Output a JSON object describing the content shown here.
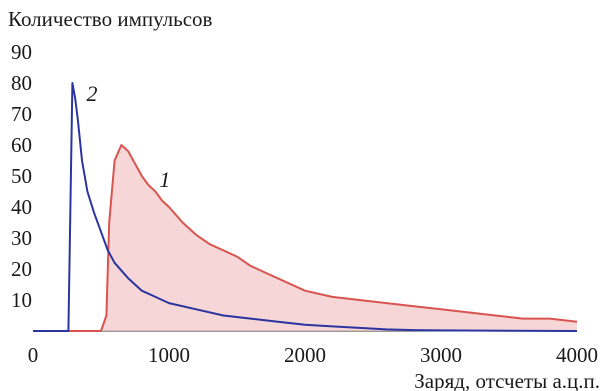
{
  "chart_data": {
    "type": "line",
    "ylabel": "Количество импульсов",
    "xlabel": "Заряд, отсчеты а.ц.п.",
    "xlim": [
      0,
      4000
    ],
    "ylim": [
      0,
      90
    ],
    "x_ticks": [
      0,
      1000,
      2000,
      3000,
      4000
    ],
    "y_ticks": [
      10,
      20,
      30,
      40,
      50,
      60,
      70,
      80,
      90
    ],
    "grid": false,
    "series": [
      {
        "name": "1",
        "color": "#d9534f",
        "fill": "#f2c4c4",
        "x": [
          0,
          500,
          540,
          560,
          600,
          650,
          700,
          750,
          800,
          850,
          900,
          950,
          1000,
          1100,
          1200,
          1300,
          1400,
          1500,
          1600,
          1700,
          1800,
          1900,
          2000,
          2200,
          2400,
          2600,
          2800,
          3000,
          3200,
          3400,
          3600,
          3800,
          4000
        ],
        "y": [
          0,
          0,
          5,
          35,
          55,
          60,
          58,
          54,
          50,
          47,
          45,
          42,
          40,
          35,
          31,
          28,
          26,
          24,
          21,
          19,
          17,
          15,
          13,
          11,
          10,
          9,
          8,
          7,
          6,
          5,
          4,
          4,
          3
        ]
      },
      {
        "name": "2",
        "color": "#2b35a0",
        "fill": "none",
        "x": [
          0,
          260,
          275,
          290,
          310,
          330,
          360,
          400,
          450,
          500,
          550,
          600,
          700,
          800,
          900,
          1000,
          1200,
          1400,
          1600,
          1800,
          2000,
          2200,
          2400,
          2600,
          2800,
          3000,
          4000
        ],
        "y": [
          0,
          0,
          40,
          80,
          75,
          68,
          55,
          45,
          38,
          32,
          26,
          22,
          17,
          13,
          11,
          9,
          7,
          5,
          4,
          3,
          2,
          1.5,
          1,
          0.5,
          0.3,
          0.2,
          0
        ]
      }
    ]
  }
}
